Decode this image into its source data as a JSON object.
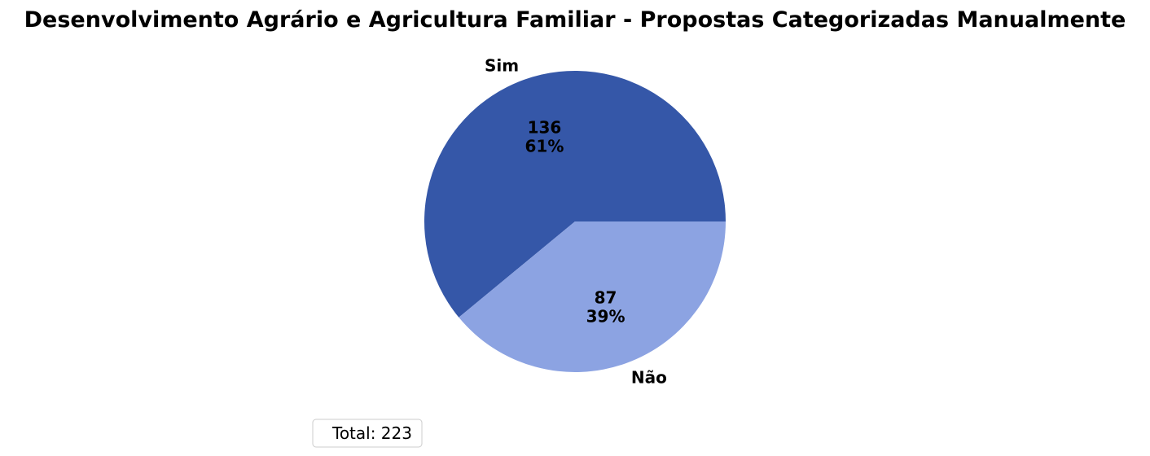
{
  "chart_data": {
    "type": "pie",
    "title": "Desenvolvimento Agrário e Agricultura Familiar - Propostas Categorizadas Manualmente",
    "categories": [
      "Sim",
      "Não"
    ],
    "values": [
      136,
      87
    ],
    "percent_labels": [
      "61%",
      "39%"
    ],
    "colors": [
      "#3557a8",
      "#8ca3e2"
    ],
    "start_angle_deg": 0,
    "direction": "counterclockwise",
    "legend": {
      "text": "Total: 223",
      "placement": "lower-left"
    }
  }
}
